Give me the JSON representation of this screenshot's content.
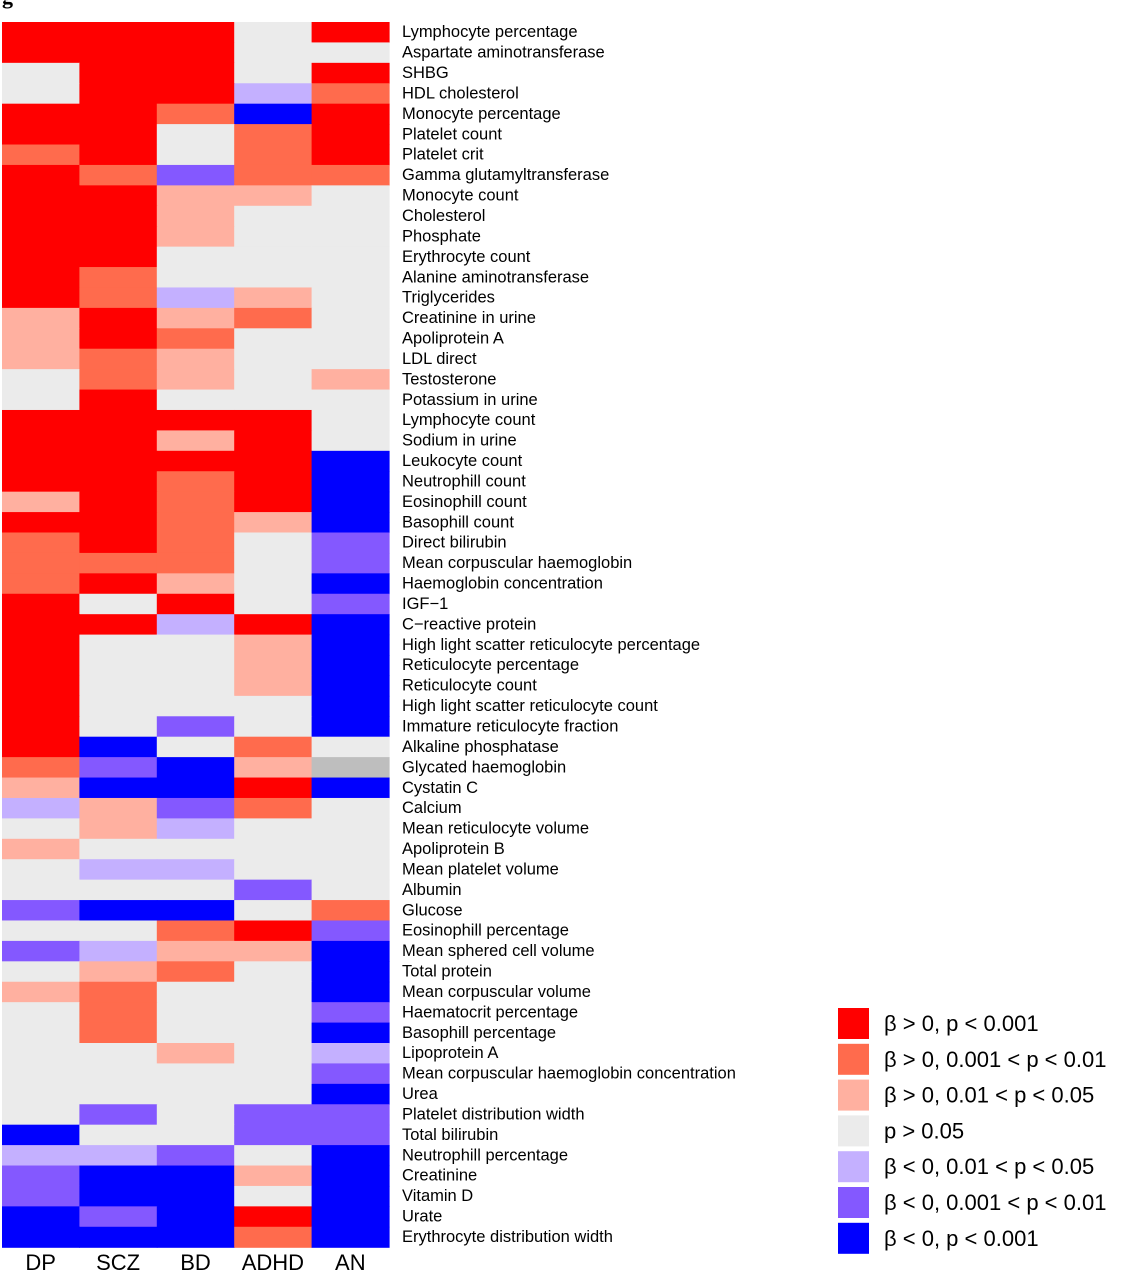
{
  "chart_data": {
    "type": "heatmap",
    "corner_label": "g",
    "columns": [
      "DP",
      "SCZ",
      "BD",
      "ADHD",
      "AN"
    ],
    "rows": [
      "Lymphocyte percentage",
      "Aspartate aminotransferase",
      "SHBG",
      "HDL cholesterol",
      "Monocyte percentage",
      "Platelet count",
      "Platelet crit",
      "Gamma glutamyltransferase",
      "Monocyte count",
      "Cholesterol",
      "Phosphate",
      "Erythrocyte count",
      "Alanine aminotransferase",
      "Triglycerides",
      "Creatinine in urine",
      "Apoliprotein A",
      "LDL direct",
      "Testosterone",
      "Potassium in urine",
      "Lymphocyte count",
      "Sodium in urine",
      "Leukocyte count",
      "Neutrophill count",
      "Eosinophill count",
      "Basophill count",
      "Direct bilirubin",
      "Mean corpuscular haemoglobin",
      "Haemoglobin concentration",
      "IGF−1",
      "C−reactive protein",
      "High light scatter reticulocyte percentage",
      "Reticulocyte percentage",
      "Reticulocyte count",
      "High light scatter reticulocyte count",
      "Immature reticulocyte fraction",
      "Alkaline phosphatase",
      "Glycated haemoglobin",
      "Cystatin C",
      "Calcium",
      "Mean reticulocyte volume",
      "Apoliprotein B",
      "Mean platelet volume",
      "Albumin",
      "Glucose",
      "Eosinophill percentage",
      "Mean sphered cell volume",
      "Total protein",
      "Mean corpuscular volume",
      "Haematocrit percentage",
      "Basophill percentage",
      "Lipoprotein A",
      "Mean corpuscular haemoglobin concentration",
      "Urea",
      "Platelet distribution width",
      "Total bilirubin",
      "Neutrophill percentage",
      "Creatinine",
      "Vitamin D",
      "Urate",
      "Erythrocyte distribution width"
    ],
    "levels": [
      {
        "code": 3,
        "label": "β > 0, p < 0.001",
        "color": "#FF0000"
      },
      {
        "code": 2,
        "label": "β > 0, 0.001 < p < 0.01",
        "color": "#FF6B4D"
      },
      {
        "code": 1,
        "label": "β > 0, 0.01 < p < 0.05",
        "color": "#FFB0A0"
      },
      {
        "code": 0,
        "label": "p > 0.05",
        "color": "#EBEBEB"
      },
      {
        "code": -1,
        "label": "β < 0, 0.01 < p < 0.05",
        "color": "#C4B0FF"
      },
      {
        "code": -2,
        "label": "β < 0, 0.001 < p < 0.01",
        "color": "#8458FF"
      },
      {
        "code": -3,
        "label": "β < 0, p < 0.001",
        "color": "#0000FF"
      }
    ],
    "missing_color": "#BEBEBE",
    "values": [
      [
        3,
        3,
        3,
        0,
        3
      ],
      [
        3,
        3,
        3,
        0,
        0
      ],
      [
        0,
        3,
        3,
        0,
        3
      ],
      [
        0,
        3,
        3,
        -1,
        2
      ],
      [
        3,
        3,
        2,
        -3,
        3
      ],
      [
        3,
        3,
        0,
        2,
        3
      ],
      [
        2,
        3,
        0,
        2,
        3
      ],
      [
        3,
        2,
        -2,
        2,
        2
      ],
      [
        3,
        3,
        1,
        1,
        0
      ],
      [
        3,
        3,
        1,
        0,
        0
      ],
      [
        3,
        3,
        1,
        0,
        0
      ],
      [
        3,
        3,
        0,
        0,
        0
      ],
      [
        3,
        2,
        0,
        0,
        0
      ],
      [
        3,
        2,
        -1,
        1,
        0
      ],
      [
        1,
        3,
        1,
        2,
        0
      ],
      [
        1,
        3,
        2,
        0,
        0
      ],
      [
        1,
        2,
        1,
        0,
        0
      ],
      [
        0,
        2,
        1,
        0,
        1
      ],
      [
        0,
        3,
        0,
        0,
        0
      ],
      [
        3,
        3,
        3,
        3,
        0
      ],
      [
        3,
        3,
        1,
        3,
        0
      ],
      [
        3,
        3,
        3,
        3,
        -3
      ],
      [
        3,
        3,
        2,
        3,
        -3
      ],
      [
        1,
        3,
        2,
        3,
        -3
      ],
      [
        3,
        3,
        2,
        1,
        -3
      ],
      [
        2,
        3,
        2,
        0,
        -2
      ],
      [
        2,
        2,
        2,
        0,
        -2
      ],
      [
        2,
        3,
        1,
        0,
        -3
      ],
      [
        3,
        0,
        3,
        0,
        -2
      ],
      [
        3,
        3,
        -1,
        3,
        -3
      ],
      [
        3,
        0,
        0,
        1,
        -3
      ],
      [
        3,
        0,
        0,
        1,
        -3
      ],
      [
        3,
        0,
        0,
        1,
        -3
      ],
      [
        3,
        0,
        0,
        0,
        -3
      ],
      [
        3,
        0,
        -2,
        0,
        -3
      ],
      [
        3,
        -3,
        0,
        2,
        0
      ],
      [
        2,
        -2,
        -3,
        1,
        null
      ],
      [
        1,
        -3,
        -3,
        3,
        -3
      ],
      [
        -1,
        1,
        -2,
        2,
        0
      ],
      [
        0,
        1,
        -1,
        0,
        0
      ],
      [
        1,
        0,
        0,
        0,
        0
      ],
      [
        0,
        -1,
        -1,
        0,
        0
      ],
      [
        0,
        0,
        0,
        -2,
        0
      ],
      [
        -2,
        -3,
        -3,
        0,
        2
      ],
      [
        0,
        0,
        2,
        3,
        -2
      ],
      [
        -2,
        -1,
        1,
        1,
        -3
      ],
      [
        0,
        1,
        2,
        0,
        -3
      ],
      [
        1,
        2,
        0,
        0,
        -3
      ],
      [
        0,
        2,
        0,
        0,
        -2
      ],
      [
        0,
        2,
        0,
        0,
        -3
      ],
      [
        0,
        0,
        1,
        0,
        -1
      ],
      [
        0,
        0,
        0,
        0,
        -2
      ],
      [
        0,
        0,
        0,
        0,
        -3
      ],
      [
        0,
        -2,
        0,
        -2,
        -2
      ],
      [
        -3,
        0,
        0,
        -2,
        -2
      ],
      [
        -1,
        -1,
        -2,
        0,
        -3
      ],
      [
        -2,
        -3,
        -3,
        1,
        -3
      ],
      [
        -2,
        -3,
        -3,
        0,
        -3
      ],
      [
        -3,
        -2,
        -3,
        3,
        -3
      ],
      [
        -3,
        -3,
        -3,
        2,
        -3
      ]
    ]
  }
}
